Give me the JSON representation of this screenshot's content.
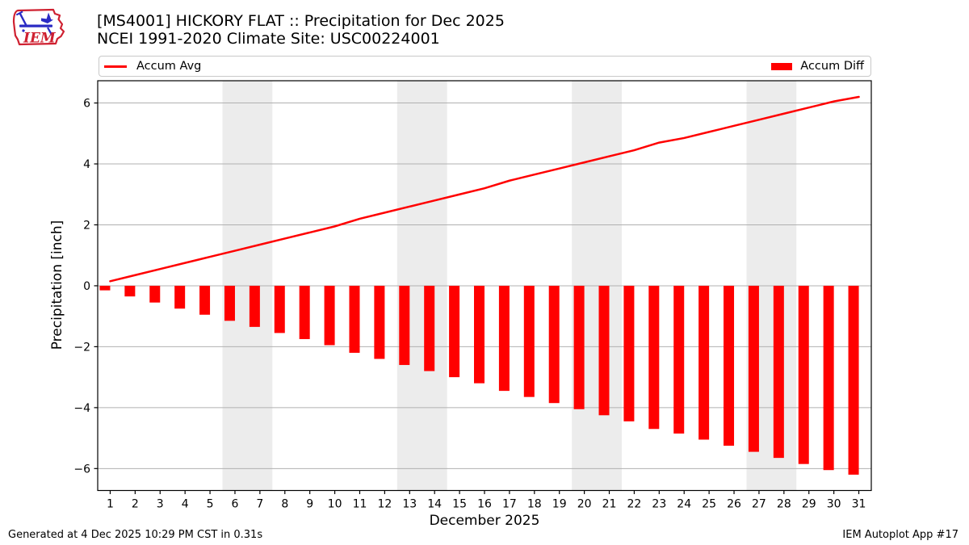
{
  "header": {
    "logo_text": "IEM",
    "title_line1": "[MS4001] HICKORY FLAT :: Precipitation for Dec 2025",
    "title_line2": "NCEI 1991-2020 Climate Site: USC00224001"
  },
  "legend": {
    "avg_label": "Accum Avg",
    "diff_label": "Accum Diff"
  },
  "chart_data": {
    "type": "combo",
    "title": "[MS4001] HICKORY FLAT :: Precipitation for Dec 2025",
    "subtitle": "NCEI 1991-2020 Climate Site: USC00224001",
    "xlabel": "December 2025",
    "ylabel": "Precipitation [inch]",
    "x": [
      1,
      2,
      3,
      4,
      5,
      6,
      7,
      8,
      9,
      10,
      11,
      12,
      13,
      14,
      15,
      16,
      17,
      18,
      19,
      20,
      21,
      22,
      23,
      24,
      25,
      26,
      27,
      28,
      29,
      30,
      31
    ],
    "series": [
      {
        "name": "Accum Avg",
        "type": "line",
        "color": "#ff0000",
        "values": [
          0.15,
          0.35,
          0.55,
          0.75,
          0.95,
          1.15,
          1.35,
          1.55,
          1.75,
          1.95,
          2.2,
          2.4,
          2.6,
          2.8,
          3.0,
          3.2,
          3.45,
          3.65,
          3.85,
          4.05,
          4.25,
          4.45,
          4.7,
          4.85,
          5.05,
          5.25,
          5.45,
          5.65,
          5.85,
          6.05,
          6.2
        ]
      },
      {
        "name": "Accum Diff",
        "type": "bar",
        "color": "#ff0000",
        "values": [
          -0.15,
          -0.35,
          -0.55,
          -0.75,
          -0.95,
          -1.15,
          -1.35,
          -1.55,
          -1.75,
          -1.95,
          -2.2,
          -2.4,
          -2.6,
          -2.8,
          -3.0,
          -3.2,
          -3.45,
          -3.65,
          -3.85,
          -4.05,
          -4.25,
          -4.45,
          -4.7,
          -4.85,
          -5.05,
          -5.25,
          -5.45,
          -5.65,
          -5.85,
          -6.05,
          -6.2
        ]
      }
    ],
    "xlim": [
      0.5,
      31.5
    ],
    "ylim": [
      -6.72,
      6.73
    ],
    "xticks": [
      1,
      2,
      3,
      4,
      5,
      6,
      7,
      8,
      9,
      10,
      11,
      12,
      13,
      14,
      15,
      16,
      17,
      18,
      19,
      20,
      21,
      22,
      23,
      24,
      25,
      26,
      27,
      28,
      29,
      30,
      31
    ],
    "yticks": [
      {
        "value": 6,
        "label": "6"
      },
      {
        "value": 4,
        "label": "4"
      },
      {
        "value": 2,
        "label": "2"
      },
      {
        "value": 0,
        "label": "0"
      },
      {
        "value": -2,
        "label": "−2"
      },
      {
        "value": -4,
        "label": "−4"
      },
      {
        "value": -6,
        "label": "−6"
      }
    ],
    "weekend_bands": [
      [
        5.5,
        7.5
      ],
      [
        12.5,
        14.5
      ],
      [
        19.5,
        21.5
      ],
      [
        26.5,
        28.5
      ]
    ],
    "grid": true,
    "legend_position": "top",
    "colors": {
      "accent": "#ff0000",
      "band": "#ececec",
      "grid": "#b0b0b0",
      "axis": "#000000"
    }
  },
  "footer": {
    "generated": "Generated at 4 Dec 2025 10:29 PM CST in 0.31s",
    "app": "IEM Autoplot App #17"
  }
}
